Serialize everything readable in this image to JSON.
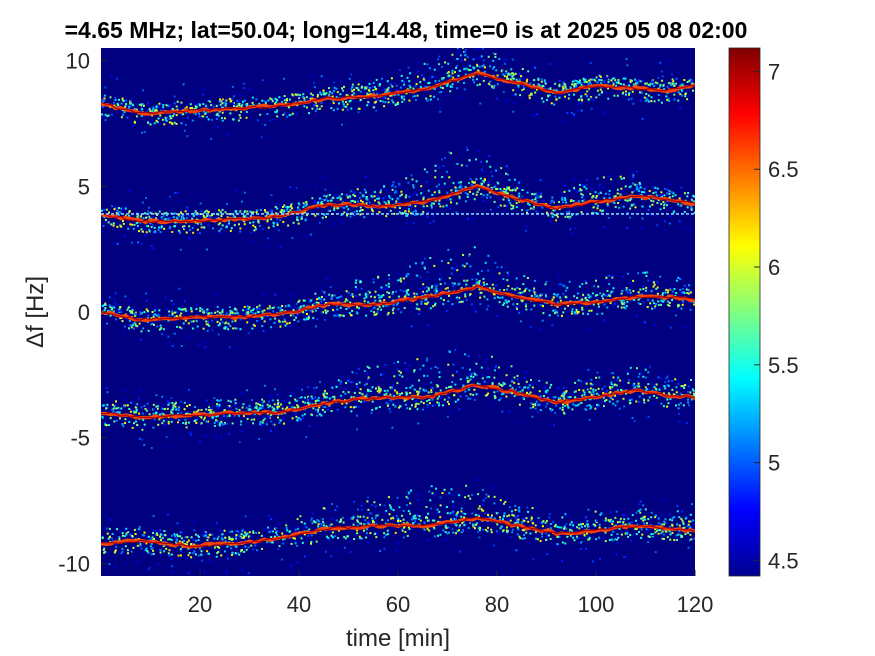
{
  "chart_data": {
    "type": "heatmap",
    "title": "=4.65 MHz;  lat=50.04; long=14.48, time=0 is at 2025 05 08 02:00",
    "xlabel": "time [min]",
    "ylabel": "Δf [Hz]",
    "xlim": [
      0,
      120
    ],
    "ylim": [
      -10.5,
      10.5
    ],
    "x_ticks": [
      20,
      40,
      60,
      80,
      100,
      120
    ],
    "y_ticks": [
      -10,
      -5,
      0,
      5,
      10
    ],
    "colorbar": {
      "ticks": [
        4.5,
        5,
        5.5,
        6,
        6.5,
        7
      ],
      "range": [
        4.42,
        7.12
      ],
      "colormap": "jet"
    },
    "background_value": 4.42,
    "reference_line": {
      "y": 3.9,
      "color": "#7fd3ff",
      "style": "dashed"
    },
    "traces": [
      {
        "name": "",
        "points": [
          [
            0,
            8.3
          ],
          [
            8,
            7.9
          ],
          [
            18,
            8.0
          ],
          [
            28,
            8.1
          ],
          [
            36,
            8.2
          ],
          [
            46,
            8.5
          ],
          [
            56,
            8.6
          ],
          [
            66,
            8.9
          ],
          [
            76,
            9.5
          ],
          [
            84,
            9.1
          ],
          [
            92,
            8.7
          ],
          [
            100,
            9.0
          ],
          [
            108,
            8.9
          ],
          [
            114,
            8.8
          ],
          [
            120,
            9.0
          ]
        ],
        "upper": [
          [
            44,
            0
          ],
          [
            60,
            0.4
          ],
          [
            68,
            0.9
          ],
          [
            74,
            1.3
          ],
          [
            80,
            0.6
          ],
          [
            88,
            0.1
          ],
          [
            96,
            0
          ]
        ]
      },
      {
        "name": "",
        "points": [
          [
            0,
            3.9
          ],
          [
            8,
            3.6
          ],
          [
            18,
            3.6
          ],
          [
            28,
            3.7
          ],
          [
            36,
            3.8
          ],
          [
            46,
            4.3
          ],
          [
            56,
            4.2
          ],
          [
            66,
            4.4
          ],
          [
            76,
            5.0
          ],
          [
            84,
            4.5
          ],
          [
            92,
            4.1
          ],
          [
            100,
            4.4
          ],
          [
            108,
            4.6
          ],
          [
            114,
            4.5
          ],
          [
            120,
            4.3
          ]
        ],
        "upper": [
          [
            44,
            0
          ],
          [
            60,
            0.6
          ],
          [
            68,
            1.2
          ],
          [
            74,
            1.6
          ],
          [
            80,
            0.8
          ],
          [
            88,
            0.1
          ],
          [
            96,
            0.4
          ],
          [
            102,
            0.8
          ],
          [
            108,
            0.2
          ],
          [
            116,
            0
          ]
        ]
      },
      {
        "name": "",
        "points": [
          [
            0,
            0.0
          ],
          [
            8,
            -0.3
          ],
          [
            18,
            -0.2
          ],
          [
            28,
            -0.2
          ],
          [
            36,
            -0.1
          ],
          [
            46,
            0.3
          ],
          [
            56,
            0.3
          ],
          [
            66,
            0.6
          ],
          [
            76,
            1.0
          ],
          [
            84,
            0.6
          ],
          [
            92,
            0.3
          ],
          [
            100,
            0.4
          ],
          [
            108,
            0.6
          ],
          [
            114,
            0.6
          ],
          [
            120,
            0.5
          ]
        ],
        "upper": [
          [
            40,
            0
          ],
          [
            50,
            0.6
          ],
          [
            60,
            0.9
          ],
          [
            68,
            1.4
          ],
          [
            74,
            1.5
          ],
          [
            80,
            0.9
          ],
          [
            88,
            0.4
          ],
          [
            100,
            0.6
          ],
          [
            110,
            0.7
          ],
          [
            120,
            0.3
          ]
        ]
      },
      {
        "name": "",
        "points": [
          [
            0,
            -4.0
          ],
          [
            8,
            -4.2
          ],
          [
            18,
            -4.1
          ],
          [
            28,
            -4.0
          ],
          [
            36,
            -4.0
          ],
          [
            46,
            -3.6
          ],
          [
            56,
            -3.4
          ],
          [
            66,
            -3.4
          ],
          [
            76,
            -2.9
          ],
          [
            84,
            -3.2
          ],
          [
            92,
            -3.6
          ],
          [
            100,
            -3.4
          ],
          [
            108,
            -3.1
          ],
          [
            114,
            -3.3
          ],
          [
            120,
            -3.4
          ]
        ],
        "upper": [
          [
            36,
            0.2
          ],
          [
            46,
            0.7
          ],
          [
            56,
            1.0
          ],
          [
            66,
            1.3
          ],
          [
            74,
            1.4
          ],
          [
            80,
            0.9
          ],
          [
            88,
            0.4
          ],
          [
            100,
            0.5
          ],
          [
            110,
            0.6
          ],
          [
            120,
            0.3
          ]
        ]
      },
      {
        "name": "",
        "points": [
          [
            0,
            -9.2
          ],
          [
            8,
            -9.1
          ],
          [
            18,
            -9.3
          ],
          [
            28,
            -9.2
          ],
          [
            36,
            -9.0
          ],
          [
            46,
            -8.6
          ],
          [
            56,
            -8.5
          ],
          [
            66,
            -8.5
          ],
          [
            76,
            -8.2
          ],
          [
            84,
            -8.5
          ],
          [
            92,
            -8.8
          ],
          [
            100,
            -8.7
          ],
          [
            108,
            -8.5
          ],
          [
            114,
            -8.6
          ],
          [
            120,
            -8.7
          ]
        ],
        "upper": [
          [
            36,
            0.2
          ],
          [
            46,
            0.6
          ],
          [
            56,
            0.8
          ],
          [
            66,
            1.2
          ],
          [
            74,
            1.3
          ],
          [
            80,
            0.9
          ],
          [
            88,
            0.4
          ],
          [
            100,
            0.5
          ],
          [
            110,
            0.5
          ],
          [
            120,
            0.3
          ]
        ]
      }
    ]
  }
}
